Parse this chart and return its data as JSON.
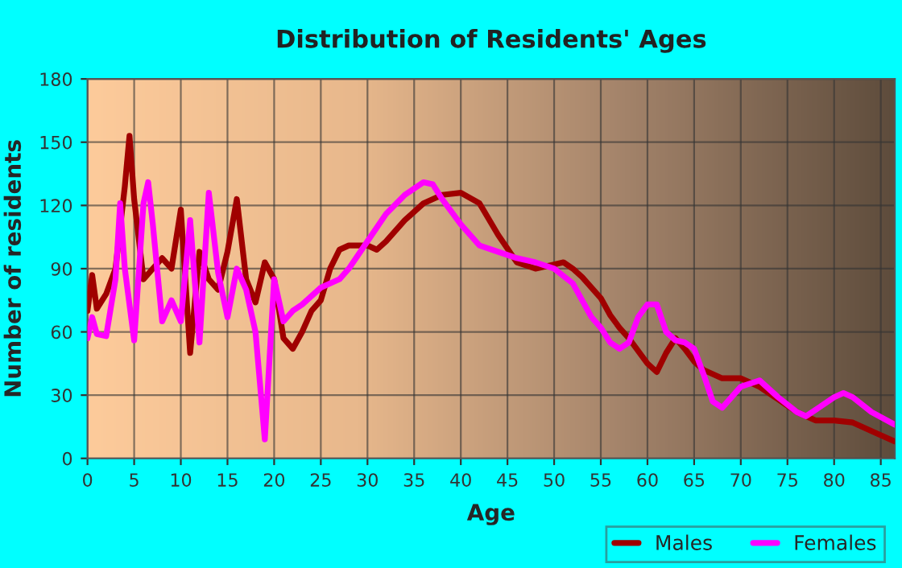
{
  "chart_data": {
    "type": "line",
    "title": "Distribution of Residents' Ages",
    "xlabel": "Age",
    "ylabel": "Number of residents",
    "xlim": [
      0,
      86.5
    ],
    "xticks": [
      0,
      5,
      10,
      15,
      20,
      25,
      30,
      35,
      40,
      45,
      50,
      55,
      60,
      65,
      70,
      75,
      80,
      85
    ],
    "ylim": [
      0,
      180
    ],
    "yticks": [
      0,
      30,
      60,
      90,
      120,
      150,
      180
    ],
    "grid": true,
    "legend": "bottom right",
    "line_style": "solid",
    "series": [
      {
        "name": "Males",
        "color": "#a00000",
        "x": [
          0,
          0.5,
          1,
          2,
          3,
          4,
          4.5,
          5,
          6,
          7,
          8,
          9,
          10,
          11,
          12,
          13,
          14,
          15,
          16,
          17,
          18,
          19,
          20,
          21,
          22,
          23,
          24,
          25,
          26,
          27,
          28,
          30,
          31,
          32,
          34,
          36,
          38,
          40,
          42,
          44,
          46,
          48,
          50,
          51,
          52,
          53,
          55,
          56,
          57,
          58,
          60,
          61,
          62,
          63,
          64,
          65,
          66,
          68,
          70,
          72,
          74,
          76,
          78,
          80,
          82,
          84,
          86.5
        ],
        "values": [
          70,
          87,
          71,
          78,
          90,
          129,
          153,
          123,
          85,
          90,
          95,
          90,
          118,
          50,
          98,
          85,
          80,
          98,
          123,
          85,
          74,
          93,
          85,
          57,
          52,
          60,
          70,
          75,
          90,
          99,
          101,
          101,
          99,
          103,
          113,
          121,
          125,
          126,
          121,
          106,
          93,
          90,
          92,
          93,
          90,
          86,
          76,
          68,
          62,
          57,
          45,
          41,
          50,
          57,
          52,
          46,
          42,
          38,
          38,
          34,
          28,
          22,
          18,
          18,
          17,
          13,
          8
        ]
      },
      {
        "name": "Females",
        "color": "#ff00ff",
        "x": [
          0,
          0.5,
          1,
          2,
          3,
          3.5,
          4,
          5,
          6,
          6.5,
          7,
          8,
          9,
          10,
          11,
          12,
          13,
          14,
          15,
          16,
          17,
          18,
          19,
          20,
          21,
          22,
          23,
          24,
          25,
          27,
          28,
          30,
          32,
          34,
          36,
          37,
          38,
          40,
          42,
          44,
          46,
          48,
          50,
          52,
          54,
          55,
          56,
          57,
          58,
          59,
          60,
          61,
          62,
          63,
          64,
          65,
          66,
          67,
          68,
          69,
          70,
          72,
          74,
          76,
          77,
          78,
          80,
          81,
          82,
          84,
          86.5
        ],
        "values": [
          57,
          67,
          59,
          58,
          85,
          121,
          90,
          56,
          121,
          131,
          111,
          65,
          75,
          65,
          113,
          55,
          126,
          88,
          67,
          90,
          80,
          60,
          9,
          85,
          65,
          70,
          73,
          77,
          81,
          85,
          90,
          103,
          116,
          125,
          131,
          130,
          123,
          111,
          101,
          98,
          95,
          93,
          90,
          83,
          67,
          62,
          55,
          52,
          55,
          67,
          73,
          73,
          60,
          56,
          55,
          52,
          40,
          27,
          24,
          29,
          34,
          37,
          29,
          22,
          20,
          23,
          29,
          31,
          29,
          22,
          16
        ]
      }
    ]
  }
}
